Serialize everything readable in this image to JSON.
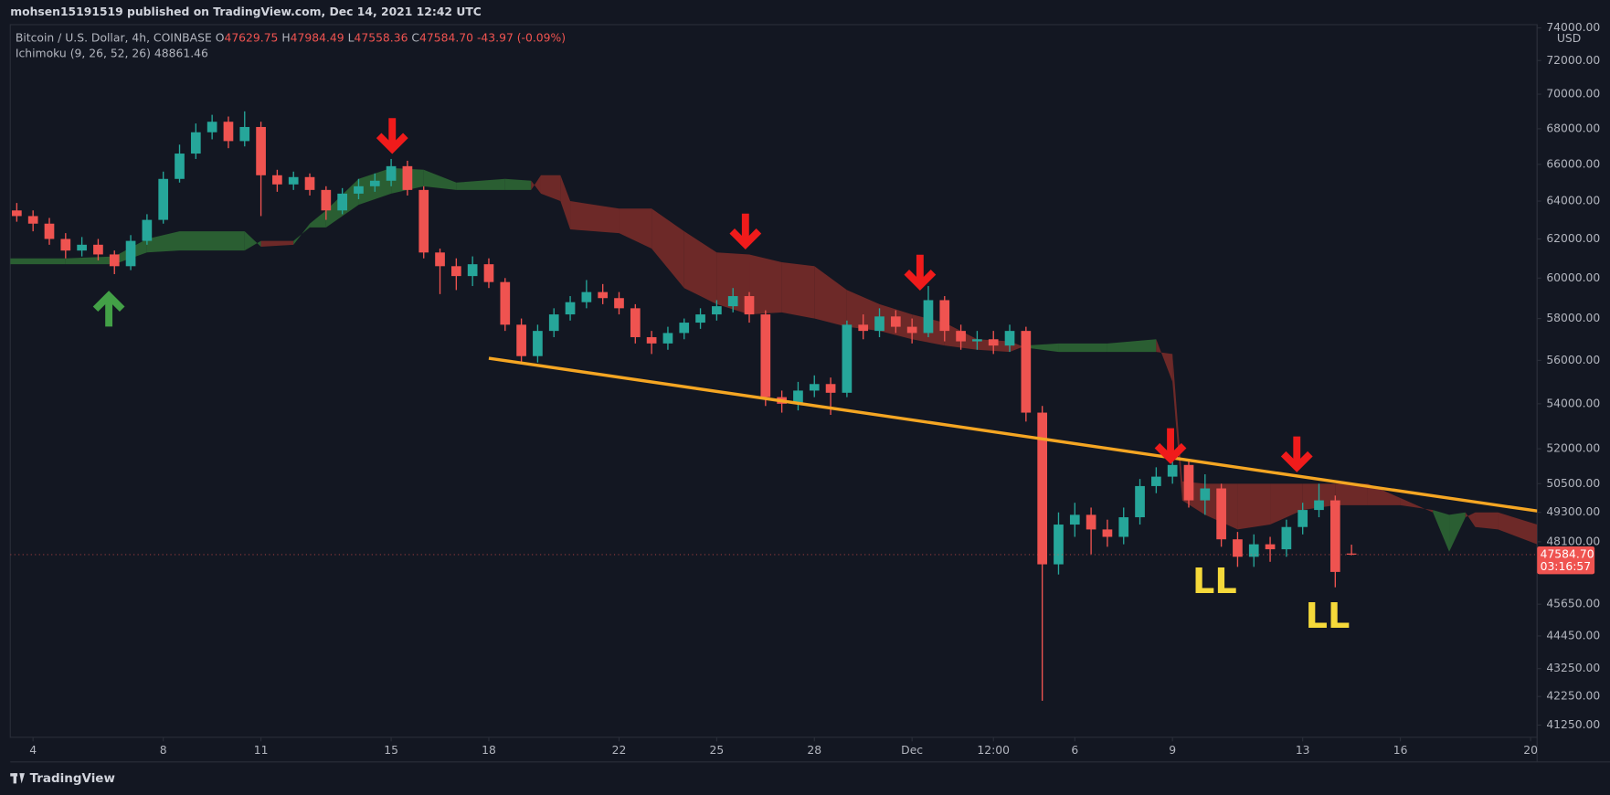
{
  "header": {
    "publisher": "mohsen15191519 published on TradingView.com, Dec 14, 2021 12:42 UTC",
    "brand": "TradingView"
  },
  "chart_data": {
    "type": "candlestick",
    "legend": {
      "symbol": "Bitcoin / U.S. Dollar, 4h, COINBASE",
      "ohlc": [
        {
          "label": "O",
          "value": "47629.75"
        },
        {
          "label": "H",
          "value": "47984.49"
        },
        {
          "label": "L",
          "value": "47558.36"
        },
        {
          "label": "C",
          "value": "47584.70"
        }
      ],
      "change": "-43.97 (-0.09%)",
      "indicator": "Ichimoku (9, 26, 52, 26)",
      "indicator_value": "48861.46"
    },
    "currency": "USD",
    "price_tag": [
      "47584.70",
      "03:16:57"
    ],
    "annotations": [
      "LL",
      "LL"
    ],
    "up_color": "#26a69a",
    "down_color": "#ef5350",
    "log_scale": true,
    "grid": false,
    "xlim": [
      3.3,
      50.2
    ],
    "ylim": [
      40830,
      74200
    ],
    "xticks": [
      4,
      8,
      11,
      15,
      18,
      22,
      25,
      28,
      {
        "value": 31,
        "label": "Dec"
      },
      {
        "value": 33.5,
        "label": "12:00"
      },
      {
        "value": 36,
        "label": "6"
      },
      {
        "value": 39,
        "label": "9"
      },
      {
        "value": 43,
        "label": "13"
      },
      {
        "value": 46,
        "label": "16"
      },
      {
        "value": 50,
        "label": "20"
      }
    ],
    "yticks": [
      {
        "value": 74000,
        "label": "74000.00"
      },
      {
        "value": 72000,
        "label": "72000.00"
      },
      {
        "value": 70000,
        "label": "70000.00"
      },
      {
        "value": 68000,
        "label": "68000.00"
      },
      {
        "value": 66000,
        "label": "66000.00"
      },
      {
        "value": 64000,
        "label": "64000.00"
      },
      {
        "value": 62000,
        "label": "62000.00"
      },
      {
        "value": 60000,
        "label": "60000.00"
      },
      {
        "value": 58000,
        "label": "58000.00"
      },
      {
        "value": 56000,
        "label": "56000.00"
      },
      {
        "value": 54000,
        "label": "54000.00"
      },
      {
        "value": 52000,
        "label": "52000.00"
      },
      {
        "value": 50500,
        "label": "50500.00"
      },
      {
        "value": 49300,
        "label": "49300.00"
      },
      {
        "value": 48100,
        "label": "48100.00"
      },
      {
        "value": 45650,
        "label": "45650.00"
      },
      {
        "value": 44450,
        "label": "44450.00"
      },
      {
        "value": 43250,
        "label": "43250.00"
      },
      {
        "value": 42250,
        "label": "42250.00"
      },
      {
        "value": 41250,
        "label": "41250.00"
      }
    ],
    "x": [
      3.5,
      4,
      4.5,
      5,
      5.5,
      6,
      6.5,
      7,
      7.5,
      8,
      8.5,
      9,
      9.5,
      10,
      10.5,
      11,
      11.5,
      12,
      12.5,
      13,
      13.5,
      14,
      14.5,
      15,
      15.5,
      16,
      16.5,
      17,
      17.5,
      18,
      18.5,
      19,
      19.5,
      20,
      20.5,
      21,
      21.5,
      22,
      22.5,
      23,
      23.5,
      24,
      24.5,
      25,
      25.5,
      26,
      26.5,
      27,
      27.5,
      28,
      28.5,
      29,
      29.5,
      30,
      30.5,
      31,
      31.5,
      32,
      32.5,
      33,
      33.5,
      34,
      34.5,
      35,
      35.5,
      36,
      36.5,
      37,
      37.5,
      38,
      38.5,
      39,
      39.5,
      40,
      40.5,
      41,
      41.5,
      42,
      42.5,
      43,
      43.5,
      44,
      44.5
    ],
    "open": [
      63500,
      63200,
      62800,
      62000,
      61400,
      61700,
      61200,
      60600,
      61900,
      63000,
      65200,
      66600,
      67800,
      68400,
      67300,
      68100,
      65400,
      64900,
      65300,
      64600,
      63500,
      64400,
      64800,
      65100,
      65900,
      64600,
      61300,
      60600,
      60100,
      60700,
      59800,
      57700,
      56200,
      57400,
      58200,
      58800,
      59300,
      59000,
      58500,
      57100,
      56800,
      57300,
      57800,
      58200,
      58600,
      59100,
      58200,
      54300,
      54000,
      54600,
      54900,
      54500,
      57700,
      57400,
      58100,
      57600,
      57300,
      58900,
      57400,
      56900,
      57000,
      56700,
      57400,
      53600,
      47200,
      48800,
      49200,
      48600,
      48300,
      49100,
      50400,
      50800,
      51300,
      49800,
      50300,
      48200,
      47500,
      48000,
      47800,
      48700,
      49400,
      49800,
      47629.75
    ],
    "high": [
      63900,
      63500,
      63100,
      62300,
      62100,
      62000,
      61400,
      62200,
      63300,
      65600,
      67100,
      68300,
      68800,
      68700,
      69000,
      68400,
      65700,
      65600,
      65500,
      64800,
      64700,
      65200,
      65500,
      66300,
      66200,
      64800,
      61500,
      61000,
      61100,
      61000,
      60000,
      58000,
      57700,
      58500,
      59100,
      59900,
      59700,
      59300,
      58700,
      57400,
      57600,
      58000,
      58500,
      58900,
      59500,
      59300,
      58400,
      54600,
      55000,
      55300,
      55200,
      57900,
      58200,
      58500,
      58400,
      58000,
      59600,
      59100,
      57700,
      57400,
      57400,
      57700,
      57600,
      53900,
      49300,
      49700,
      49500,
      49000,
      49500,
      50700,
      51200,
      51900,
      51500,
      50900,
      50500,
      48500,
      48400,
      48300,
      49000,
      49700,
      50500,
      50000,
      47984.49
    ],
    "low": [
      62900,
      62400,
      61700,
      61000,
      61100,
      60900,
      60200,
      60400,
      61700,
      62800,
      65000,
      66300,
      67400,
      66900,
      67000,
      63200,
      64500,
      64600,
      64300,
      63000,
      63300,
      64100,
      64500,
      64800,
      64300,
      61000,
      59200,
      59400,
      59600,
      59500,
      57400,
      55900,
      55900,
      57100,
      57900,
      58500,
      58700,
      58200,
      56800,
      56300,
      56500,
      57000,
      57500,
      57900,
      58300,
      57800,
      53900,
      53600,
      53700,
      54300,
      53500,
      54300,
      57000,
      57100,
      57300,
      56800,
      57100,
      56900,
      56500,
      56500,
      56300,
      56400,
      53200,
      42100,
      46800,
      48300,
      47600,
      47900,
      48000,
      48800,
      50100,
      50500,
      49500,
      49200,
      47900,
      47100,
      47100,
      47300,
      47500,
      48400,
      49100,
      46300,
      47558.36
    ],
    "close": [
      63200,
      62800,
      62000,
      61400,
      61700,
      61200,
      60600,
      61900,
      63000,
      65200,
      66600,
      67800,
      68400,
      67300,
      68100,
      65400,
      64900,
      65300,
      64600,
      63500,
      64400,
      64800,
      65100,
      65900,
      64600,
      61300,
      60600,
      60100,
      60700,
      59800,
      57700,
      56200,
      57400,
      58200,
      58800,
      59300,
      59000,
      58500,
      57100,
      56800,
      57300,
      57800,
      58200,
      58600,
      59100,
      58200,
      54300,
      54000,
      54600,
      54900,
      54500,
      57700,
      57400,
      58100,
      57600,
      57300,
      58900,
      57400,
      56900,
      57000,
      56700,
      57400,
      53600,
      47200,
      48800,
      49200,
      48600,
      48300,
      49100,
      50400,
      50800,
      51300,
      49800,
      50300,
      48200,
      47500,
      48000,
      47800,
      48700,
      49400,
      49800,
      46900,
      47584.7
    ],
    "cloud": {
      "bull_color": "#2f6b35",
      "bear_color": "#7e2d29",
      "x": [
        3.3,
        5,
        6.5,
        7.5,
        8.5,
        10.5,
        11,
        12,
        12.5,
        13,
        14,
        15,
        16,
        17,
        18.5,
        19.3,
        19.6,
        20.2,
        20.5,
        22,
        23,
        24,
        25,
        26,
        27,
        28,
        29,
        30,
        31,
        32,
        33,
        34,
        34.5,
        35.5,
        37,
        38.5,
        39,
        39.3,
        40,
        41,
        42,
        43,
        44,
        45,
        46,
        47,
        47.5,
        48,
        48.3,
        49,
        50.2
      ],
      "span_a": [
        61000,
        61000,
        61100,
        62000,
        62400,
        62400,
        61600,
        61700,
        62800,
        63500,
        65200,
        65800,
        65700,
        65000,
        65200,
        65100,
        64400,
        64000,
        62500,
        62300,
        61500,
        59500,
        58700,
        58200,
        58300,
        58000,
        57600,
        57400,
        57000,
        56700,
        56500,
        56400,
        56700,
        56800,
        56800,
        57000,
        55000,
        49800,
        49200,
        48600,
        48800,
        49400,
        49600,
        49600,
        49600,
        49400,
        49200,
        49300,
        48700,
        48600,
        48000
      ],
      "span_b": [
        60700,
        60700,
        60700,
        61300,
        61400,
        61400,
        61900,
        61900,
        62600,
        62600,
        63800,
        64400,
        64800,
        64600,
        64600,
        64600,
        65400,
        65400,
        64000,
        63600,
        63600,
        62400,
        61300,
        61200,
        60800,
        60600,
        59400,
        58700,
        58200,
        57800,
        57000,
        56900,
        56600,
        56400,
        56400,
        56400,
        56300,
        50600,
        50500,
        50500,
        50500,
        50500,
        50500,
        50500,
        49900,
        49300,
        47700,
        49100,
        49300,
        49300,
        48800
      ]
    },
    "trendline": {
      "color": "#f5a623",
      "x": [
        18,
        50.5
      ],
      "y": [
        56100,
        49300
      ]
    }
  }
}
